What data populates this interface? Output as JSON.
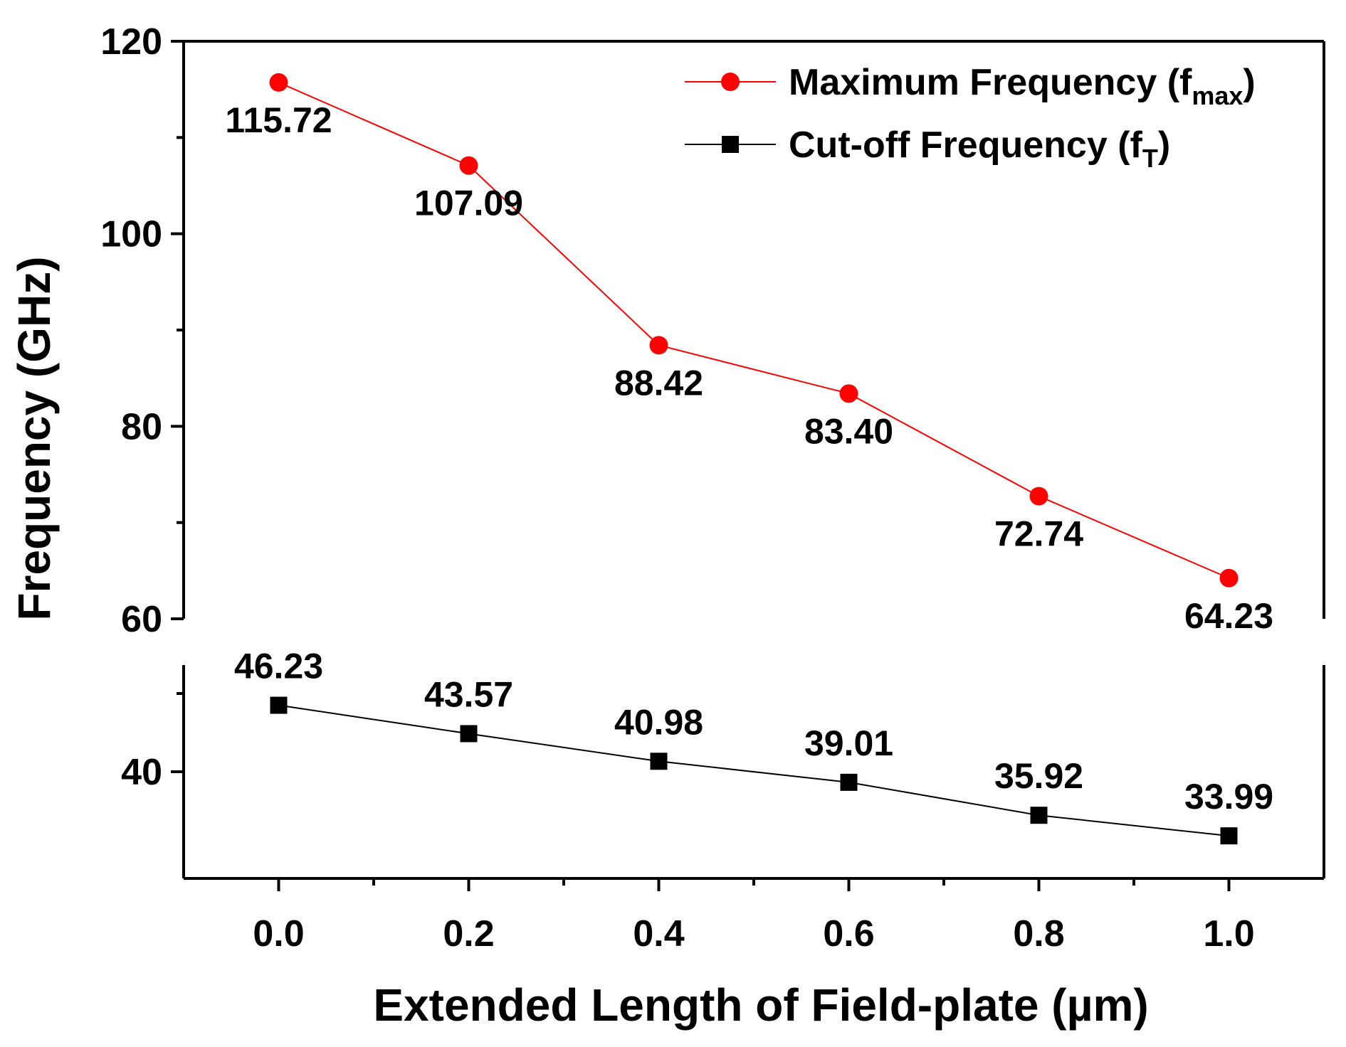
{
  "chart_data": {
    "type": "line",
    "title": "",
    "xlabel": "Extended Length of Field-plate (µm)",
    "ylabel": "Frequency (GHz)",
    "x": [
      0.0,
      0.2,
      0.4,
      0.6,
      0.8,
      1.0
    ],
    "x_tick_labels": [
      "0.0",
      "0.2",
      "0.4",
      "0.6",
      "0.8",
      "1.0"
    ],
    "xlim": [
      -0.1,
      1.1
    ],
    "y_axis_break": {
      "upper_segment": [
        60,
        120
      ],
      "lower_segment": [
        30,
        50
      ]
    },
    "y_ticks": [
      40,
      60,
      80,
      100,
      120
    ],
    "y_tick_labels": [
      "40",
      "60",
      "80",
      "100",
      "120"
    ],
    "grid": false,
    "legend_position": "top-right",
    "series": [
      {
        "name": "Maximum Frequency (fmax)",
        "legend_main": "Maximum Frequency (f",
        "legend_sub": "max",
        "legend_close": ")",
        "marker": "circle",
        "color": "#ff0000",
        "values": [
          115.72,
          107.09,
          88.42,
          83.4,
          72.74,
          64.23
        ],
        "labels": [
          "115.72",
          "107.09",
          "88.42",
          "83.40",
          "72.74",
          "64.23"
        ],
        "label_placement": "below"
      },
      {
        "name": "Cut-off Frequency (fT)",
        "legend_main": "Cut-off Frequency (f",
        "legend_sub": "T",
        "legend_close": ")",
        "marker": "square",
        "color": "#000000",
        "values": [
          46.23,
          43.57,
          40.98,
          39.01,
          35.92,
          33.99
        ],
        "labels": [
          "46.23",
          "43.57",
          "40.98",
          "39.01",
          "35.92",
          "33.99"
        ],
        "label_placement": "above"
      }
    ]
  }
}
